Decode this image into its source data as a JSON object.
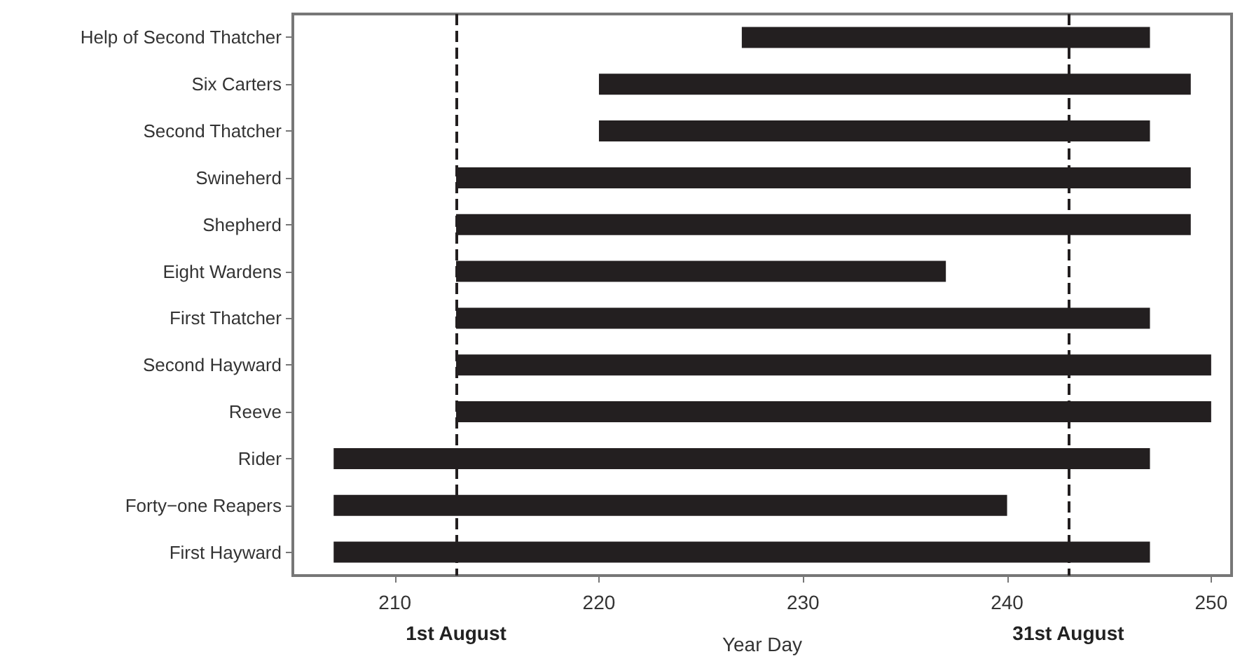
{
  "chart_data": {
    "type": "bar",
    "orientation": "horizontal",
    "xlabel": "Year Day",
    "categories": [
      "Help of Second Thatcher",
      "Six Carters",
      "Second Thatcher",
      "Swineherd",
      "Shepherd",
      "Eight Wardens",
      "First Thatcher",
      "Second Hayward",
      "Reeve",
      "Rider",
      "Forty−one Reapers",
      "First Hayward"
    ],
    "base": [
      227,
      220,
      220,
      213,
      213,
      213,
      213,
      213,
      213,
      207,
      207,
      207
    ],
    "values": [
      20,
      29,
      27,
      36,
      36,
      24,
      34,
      37,
      37,
      40,
      33,
      40
    ],
    "color": "#231f20",
    "xlim": [
      205,
      251
    ],
    "xticks": [
      210,
      220,
      230,
      240,
      250
    ],
    "ref_lines": [
      {
        "axis": "x",
        "value": 213,
        "label": "1st August",
        "color": "#231f20",
        "line_style": "dashed"
      },
      {
        "axis": "x",
        "value": 243,
        "label": "31st August",
        "color": "#231f20",
        "line_style": "dashed"
      }
    ],
    "grid": false
  }
}
